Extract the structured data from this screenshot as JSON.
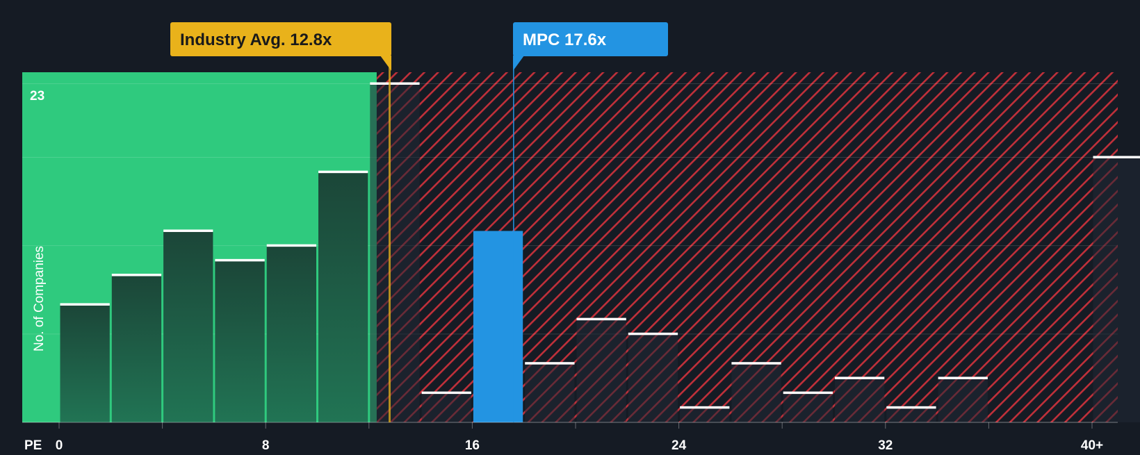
{
  "chart_data": {
    "type": "bar",
    "x_axis_label": "PE",
    "y_axis_label": "No. of Companies",
    "y_max_label": "23",
    "ylim": [
      0,
      24
    ],
    "x_ticks": [
      {
        "value": 0,
        "label": "0"
      },
      {
        "value": 8,
        "label": "8"
      },
      {
        "value": 16,
        "label": "16"
      },
      {
        "value": 24,
        "label": "24"
      },
      {
        "value": 32,
        "label": "32"
      },
      {
        "value": 40,
        "label": "40+"
      }
    ],
    "bin_width": 2,
    "bins": [
      {
        "start": 0,
        "count": 8
      },
      {
        "start": 2,
        "count": 10
      },
      {
        "start": 4,
        "count": 13
      },
      {
        "start": 6,
        "count": 11
      },
      {
        "start": 8,
        "count": 12
      },
      {
        "start": 10,
        "count": 17
      },
      {
        "start": 12,
        "count": 23
      },
      {
        "start": 14,
        "count": 2
      },
      {
        "start": 16,
        "count": 13,
        "highlight": true
      },
      {
        "start": 18,
        "count": 4
      },
      {
        "start": 20,
        "count": 7
      },
      {
        "start": 22,
        "count": 6
      },
      {
        "start": 24,
        "count": 1
      },
      {
        "start": 26,
        "count": 4
      },
      {
        "start": 28,
        "count": 2
      },
      {
        "start": 30,
        "count": 3
      },
      {
        "start": 32,
        "count": 1
      },
      {
        "start": 34,
        "count": 3
      },
      {
        "start": 36,
        "count": 0
      },
      {
        "start": 38,
        "count": 0
      },
      {
        "start": 40,
        "count": 18
      }
    ],
    "fair_zone_end": 12.3,
    "annotations": [
      {
        "label": "Industry Avg. 12.8x",
        "value": 12.8,
        "color": "#e9b21b"
      },
      {
        "label": "MPC 17.6x",
        "value": 17.6,
        "color": "#2394e2"
      }
    ],
    "colors": {
      "background": "#151b24",
      "fair_zone": "#2fca7e",
      "bar": "#1f4a3b",
      "bar_cap": "#ffffff",
      "highlight_bar": "#2394e2",
      "hatch": "#c0303a"
    }
  }
}
